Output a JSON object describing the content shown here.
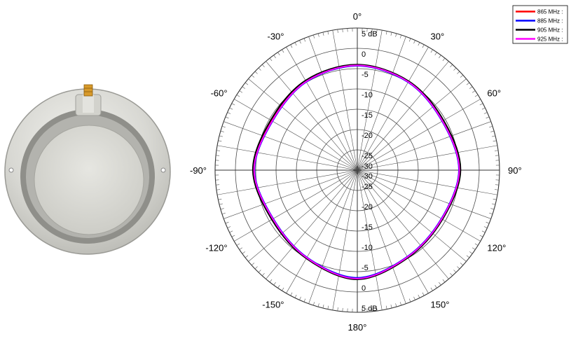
{
  "colors": {
    "red": "#ff0000",
    "blue": "#0000ff",
    "black": "#000000",
    "magenta": "#ff00ff"
  },
  "product_image": {
    "icon": "circular-patch-antenna-photo"
  },
  "chart_data": {
    "type": "polar",
    "radial_unit": "dB",
    "r_range": [
      -30,
      5
    ],
    "r_ticks": [
      "5 dB",
      "0",
      "-5",
      "-10",
      "-15",
      "-20",
      "-25",
      "-30"
    ],
    "r_ticks_lower": [
      "-30",
      "-25",
      "-20",
      "-15",
      "-10",
      "-5",
      "0",
      "5 dB"
    ],
    "angle_labels": [
      {
        "deg": 0,
        "text": "0°"
      },
      {
        "deg": 30,
        "text": "30°"
      },
      {
        "deg": 60,
        "text": "60°"
      },
      {
        "deg": 90,
        "text": "90°"
      },
      {
        "deg": 120,
        "text": "120°"
      },
      {
        "deg": 150,
        "text": "150°"
      },
      {
        "deg": 180,
        "text": "180°"
      },
      {
        "deg": -150,
        "text": "-150°"
      },
      {
        "deg": -120,
        "text": "-120°"
      },
      {
        "deg": -90,
        "text": "-90°"
      },
      {
        "deg": -60,
        "text": "-60°"
      },
      {
        "deg": -30,
        "text": "-30°"
      }
    ],
    "angles_deg": [
      0,
      30,
      60,
      90,
      120,
      150,
      180,
      210,
      240,
      270,
      300,
      330
    ],
    "legend_placement": "top-right",
    "series": [
      {
        "name": "865 MHz :",
        "color": "#ff0000",
        "gain_db": [
          -4.1,
          -4.8,
          -5.7,
          -4.8,
          -5.9,
          -5.2,
          -3.2,
          -5.0,
          -5.9,
          -4.5,
          -5.7,
          -4.7
        ]
      },
      {
        "name": "885 MHz :",
        "color": "#0000ff",
        "gain_db": [
          -4.3,
          -5.0,
          -5.9,
          -5.0,
          -6.1,
          -5.4,
          -3.5,
          -5.2,
          -6.1,
          -4.7,
          -5.9,
          -4.9
        ]
      },
      {
        "name": "905 MHz :",
        "color": "#000000",
        "gain_db": [
          -4.0,
          -4.7,
          -5.5,
          -4.6,
          -5.8,
          -5.1,
          -3.1,
          -4.9,
          -5.7,
          -4.3,
          -5.4,
          -4.5
        ]
      },
      {
        "name": "925 MHz :",
        "color": "#ff00ff",
        "gain_db": [
          -4.2,
          -4.9,
          -5.8,
          -4.9,
          -6.0,
          -5.3,
          -3.3,
          -5.1,
          -6.0,
          -4.6,
          -5.8,
          -4.8
        ]
      }
    ]
  }
}
